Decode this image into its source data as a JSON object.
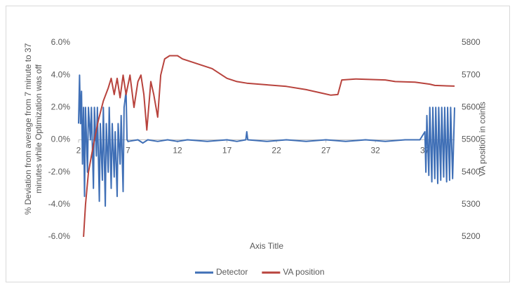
{
  "chart_data": {
    "type": "line",
    "x_label": "Axis Title",
    "y_label": "% Deviation from average from 7 minute to 37 minutes while Optimization was off",
    "y2_label": "VA position in coints",
    "xlim": [
      2,
      40
    ],
    "xticks": [
      2,
      7,
      12,
      17,
      22,
      27,
      32,
      37
    ],
    "ylim": [
      -6,
      6
    ],
    "yticks": [
      {
        "value": -6,
        "label": "-6.0%"
      },
      {
        "value": -4,
        "label": "-4.0%"
      },
      {
        "value": -2,
        "label": "-2.0%"
      },
      {
        "value": 0,
        "label": "0.0%"
      },
      {
        "value": 2,
        "label": "2.0%"
      },
      {
        "value": 4,
        "label": "4.0%"
      },
      {
        "value": 6,
        "label": "6.0%"
      }
    ],
    "y2lim": [
      5200,
      5800
    ],
    "y2ticks": [
      5200,
      5300,
      5400,
      5500,
      5600,
      5700,
      5800
    ],
    "grid": false,
    "legend": "bottom",
    "series": [
      {
        "name": "Detector",
        "color": "#3f6fb6",
        "x": [
          2,
          2.1,
          2.2,
          2.3,
          2.4,
          2.5,
          2.6,
          2.7,
          2.9,
          3.0,
          3.2,
          3.3,
          3.5,
          3.6,
          3.8,
          3.9,
          4.1,
          4.2,
          4.4,
          4.5,
          4.7,
          4.8,
          5.0,
          5.1,
          5.3,
          5.4,
          5.6,
          5.7,
          5.9,
          6.0,
          6.2,
          6.3,
          6.5,
          6.6,
          6.8,
          6.9,
          7.0,
          8,
          8.5,
          9,
          10,
          11,
          12,
          13,
          15,
          17,
          18,
          18.9,
          19,
          19.1,
          21,
          23,
          25,
          27,
          29,
          31,
          33,
          35,
          36.5,
          37,
          37.1,
          37.2,
          37.4,
          37.5,
          37.7,
          37.8,
          38.0,
          38.1,
          38.3,
          38.4,
          38.6,
          38.7,
          38.9,
          39.0,
          39.2,
          39.3,
          39.5,
          39.6,
          39.8,
          40
        ],
        "values": [
          1.0,
          4.0,
          1.0,
          3.0,
          -1.5,
          2.0,
          -3.5,
          2.0,
          -2.0,
          2.0,
          0,
          2.0,
          -3.0,
          2.0,
          -1.0,
          2.0,
          -3.8,
          1.0,
          -2.5,
          2.0,
          -4.1,
          1.0,
          -2.0,
          2.0,
          -3.0,
          1.0,
          -2.3,
          0.5,
          -3.5,
          1.0,
          -1.5,
          1.5,
          -3.2,
          2.0,
          3.0,
          0,
          -0.1,
          0,
          -0.2,
          0,
          -0.1,
          0,
          -0.1,
          0,
          -0.1,
          0,
          -0.1,
          0,
          0.5,
          0,
          -0.1,
          0,
          -0.1,
          0,
          -0.1,
          0,
          -0.1,
          0,
          0,
          0.5,
          -2,
          1.5,
          -2.2,
          2,
          -2.6,
          2,
          -2.4,
          2,
          -2.7,
          2,
          -2.5,
          2,
          -2.3,
          2,
          -2.6,
          2,
          -2.5,
          2,
          -2.4,
          2
        ]
      },
      {
        "name": "VA position",
        "color": "#b8433d",
        "axis": "y2",
        "x": [
          2.5,
          2.7,
          3,
          3.3,
          3.6,
          4,
          4.5,
          5,
          5.3,
          5.6,
          5.9,
          6.2,
          6.5,
          6.8,
          7.2,
          7.6,
          8,
          8.3,
          8.6,
          8.9,
          9.3,
          9.6,
          10,
          10.3,
          10.7,
          11.2,
          12,
          12.5,
          13.5,
          14.5,
          15.5,
          16.5,
          17,
          18,
          19,
          21,
          23,
          25,
          26.5,
          27.5,
          28.2,
          28.6,
          30,
          33,
          34,
          36,
          37.5,
          38,
          40
        ],
        "values": [
          5200,
          5300,
          5400,
          5450,
          5500,
          5560,
          5620,
          5660,
          5690,
          5640,
          5690,
          5630,
          5700,
          5640,
          5700,
          5600,
          5680,
          5700,
          5640,
          5530,
          5680,
          5640,
          5570,
          5700,
          5750,
          5760,
          5760,
          5750,
          5740,
          5730,
          5720,
          5700,
          5690,
          5680,
          5675,
          5670,
          5665,
          5655,
          5645,
          5638,
          5640,
          5685,
          5688,
          5685,
          5680,
          5678,
          5672,
          5668,
          5666
        ]
      }
    ]
  }
}
